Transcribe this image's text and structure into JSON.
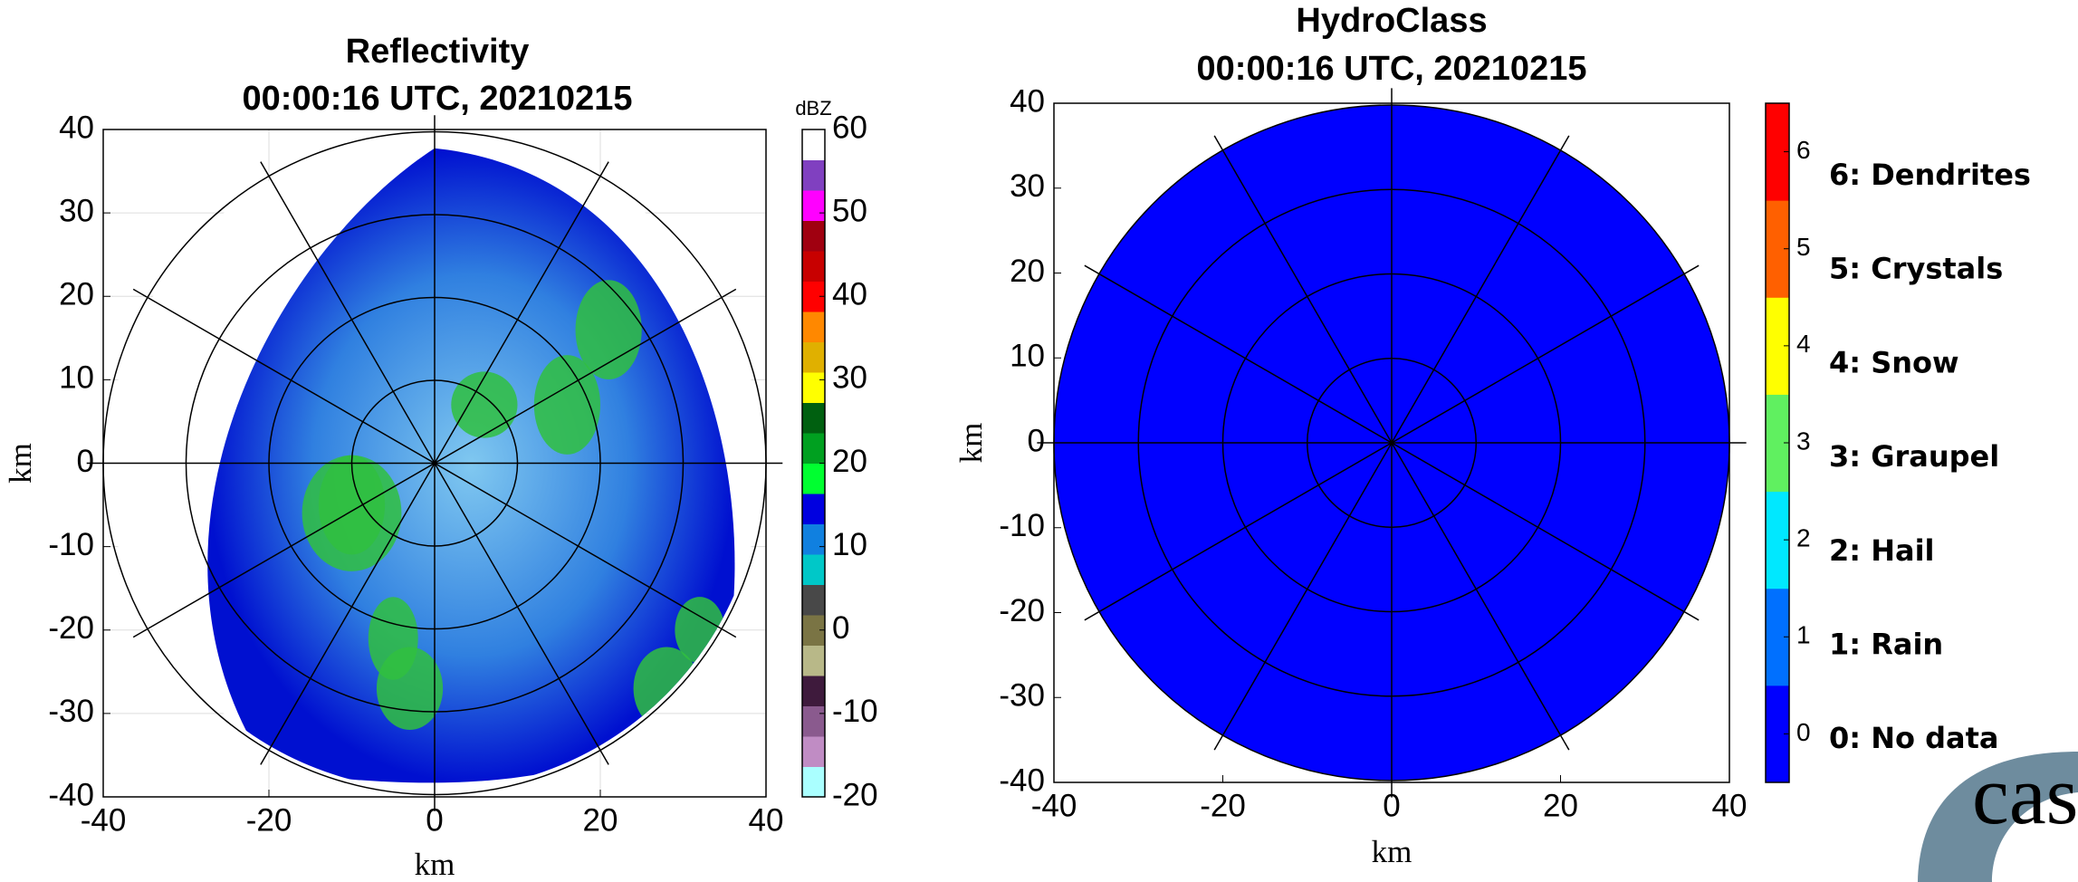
{
  "chart_data": [
    {
      "type": "radar_ppi",
      "title": "Reflectivity",
      "subtitle": "00:00:16 UTC, 20210215",
      "xlabel": "km",
      "ylabel": "km",
      "xlim": [
        -40,
        40
      ],
      "ylim": [
        -40,
        40
      ],
      "xticks": [
        -40,
        -20,
        0,
        20,
        40
      ],
      "yticks": [
        -40,
        -30,
        -20,
        -10,
        0,
        10,
        20,
        30,
        40
      ],
      "grid": true,
      "colorbar": {
        "label": "dBZ",
        "lim": [
          -20,
          60
        ],
        "ticks": [
          -20,
          -10,
          0,
          10,
          20,
          30,
          40,
          50,
          60
        ],
        "colors": [
          "#aaffff",
          "#c08cc4",
          "#8a5a8e",
          "#3e1a3c",
          "#b8b888",
          "#7a7444",
          "#484848",
          "#00c8c8",
          "#1080e0",
          "#0000e0",
          "#00ff30",
          "#00a020",
          "#006010",
          "#ffff00",
          "#e0b000",
          "#ff8800",
          "#ff0000",
          "#c80000",
          "#a00010",
          "#ff00ff",
          "#8040c0",
          "#ffffff"
        ]
      }
    },
    {
      "type": "radar_ppi",
      "title": "HydroClass",
      "subtitle": "00:00:16 UTC, 20210215",
      "xlabel": "km",
      "ylabel": "km",
      "xlim": [
        -40,
        40
      ],
      "ylim": [
        -40,
        40
      ],
      "xticks": [
        -40,
        -20,
        0,
        20,
        40
      ],
      "yticks": [
        -40,
        -30,
        -20,
        -10,
        0,
        10,
        20,
        30,
        40
      ],
      "grid": false,
      "colorbar": {
        "lim": [
          -0.5,
          6.5
        ],
        "ticks": [
          0,
          1,
          2,
          3,
          4,
          5,
          6
        ],
        "colors": [
          "#0000ff",
          "#0070ff",
          "#00e8ff",
          "#60f060",
          "#ffff00",
          "#ff6000",
          "#ff0000"
        ]
      },
      "class_labels": [
        "6: Dendrites",
        "5: Crystals",
        "4: Snow",
        "3: Graupel",
        "2: Hail",
        "1: Rain",
        "0: No data"
      ]
    }
  ],
  "logo": "cas"
}
